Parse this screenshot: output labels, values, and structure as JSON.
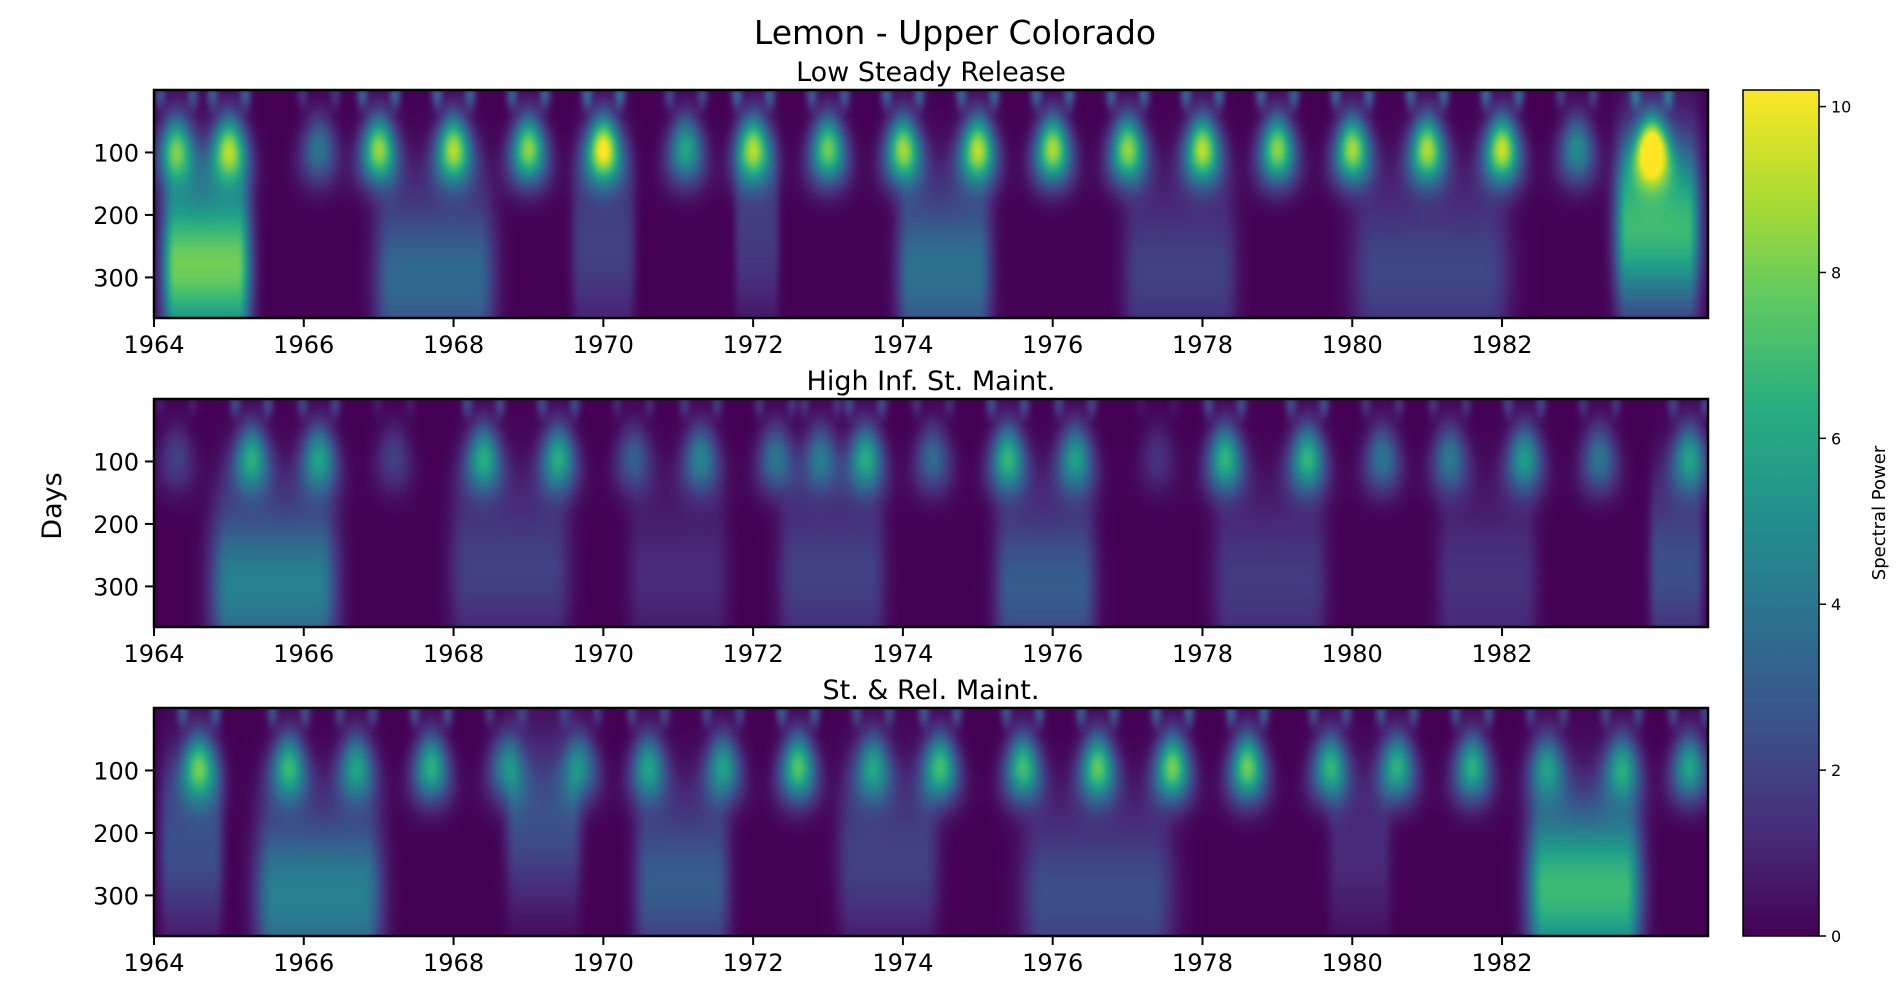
{
  "chart_data": {
    "type": "heatmap",
    "title": "Lemon - Upper Colorado",
    "ylabel": "Days",
    "colormap": "viridis",
    "colors": {
      "low": "#440154",
      "mid": "#21918c",
      "high": "#fde725"
    },
    "x_range": [
      1964,
      1984.75
    ],
    "y_range": [
      0,
      365
    ],
    "y_inverted": true,
    "xticks": [
      "1964",
      "1966",
      "1968",
      "1970",
      "1972",
      "1974",
      "1976",
      "1978",
      "1980",
      "1982"
    ],
    "yticks": [
      "100",
      "200",
      "300"
    ],
    "colorbar": {
      "label": "Spectral Power",
      "range": [
        0,
        10.2
      ],
      "ticks": [
        "0",
        "2",
        "4",
        "6",
        "8",
        "10"
      ]
    },
    "panels": [
      {
        "title": "Low Steady Release",
        "annual_peaks": [
          {
            "year": 1964.3,
            "power": 7.0
          },
          {
            "year": 1965.0,
            "power": 8.0
          },
          {
            "year": 1966.2,
            "power": 4.0
          },
          {
            "year": 1967.0,
            "power": 8.5
          },
          {
            "year": 1968.0,
            "power": 8.8
          },
          {
            "year": 1969.0,
            "power": 8.5
          },
          {
            "year": 1970.0,
            "power": 10.0
          },
          {
            "year": 1971.1,
            "power": 6.0
          },
          {
            "year": 1972.0,
            "power": 8.5
          },
          {
            "year": 1973.0,
            "power": 8.0
          },
          {
            "year": 1974.0,
            "power": 8.5
          },
          {
            "year": 1975.0,
            "power": 8.8
          },
          {
            "year": 1976.0,
            "power": 9.0
          },
          {
            "year": 1977.0,
            "power": 8.5
          },
          {
            "year": 1978.0,
            "power": 9.0
          },
          {
            "year": 1979.0,
            "power": 8.5
          },
          {
            "year": 1980.0,
            "power": 8.8
          },
          {
            "year": 1981.0,
            "power": 8.8
          },
          {
            "year": 1982.0,
            "power": 9.3
          },
          {
            "year": 1983.0,
            "power": 5.0
          },
          {
            "year": 1984.0,
            "power": 10.2
          }
        ],
        "multi_year_features": [
          {
            "start": 1964.0,
            "end": 1965.4,
            "center_day": 280,
            "power": 8.0
          },
          {
            "start": 1966.8,
            "end": 1968.7,
            "center_day": 300,
            "power": 3.5
          },
          {
            "start": 1969.5,
            "end": 1970.5,
            "center_day": 250,
            "power": 2.0
          },
          {
            "start": 1971.7,
            "end": 1972.4,
            "center_day": 230,
            "power": 1.8
          },
          {
            "start": 1973.8,
            "end": 1975.3,
            "center_day": 290,
            "power": 3.8
          },
          {
            "start": 1976.8,
            "end": 1978.6,
            "center_day": 290,
            "power": 2.0
          },
          {
            "start": 1979.8,
            "end": 1982.3,
            "center_day": 290,
            "power": 2.2
          },
          {
            "start": 1983.4,
            "end": 1984.75,
            "center_day": 220,
            "power": 7.0
          }
        ]
      },
      {
        "title": "High Inf. St. Maint.",
        "annual_peaks": [
          {
            "year": 1964.3,
            "power": 2.0
          },
          {
            "year": 1965.3,
            "power": 6.0
          },
          {
            "year": 1966.2,
            "power": 5.5
          },
          {
            "year": 1967.2,
            "power": 2.0
          },
          {
            "year": 1968.4,
            "power": 6.0
          },
          {
            "year": 1969.4,
            "power": 6.0
          },
          {
            "year": 1970.4,
            "power": 3.0
          },
          {
            "year": 1971.3,
            "power": 4.5
          },
          {
            "year": 1972.3,
            "power": 4.0
          },
          {
            "year": 1972.9,
            "power": 4.0
          },
          {
            "year": 1973.5,
            "power": 6.0
          },
          {
            "year": 1974.4,
            "power": 3.5
          },
          {
            "year": 1975.4,
            "power": 6.5
          },
          {
            "year": 1976.3,
            "power": 5.5
          },
          {
            "year": 1977.4,
            "power": 1.5
          },
          {
            "year": 1978.3,
            "power": 6.5
          },
          {
            "year": 1979.4,
            "power": 6.5
          },
          {
            "year": 1980.4,
            "power": 4.0
          },
          {
            "year": 1981.3,
            "power": 4.0
          },
          {
            "year": 1982.3,
            "power": 5.5
          },
          {
            "year": 1983.3,
            "power": 4.0
          },
          {
            "year": 1984.5,
            "power": 5.5
          }
        ],
        "multi_year_features": [
          {
            "start": 1964.6,
            "end": 1966.6,
            "center_day": 300,
            "power": 4.5
          },
          {
            "start": 1967.8,
            "end": 1969.7,
            "center_day": 270,
            "power": 2.0
          },
          {
            "start": 1970.2,
            "end": 1971.8,
            "center_day": 280,
            "power": 1.2
          },
          {
            "start": 1972.2,
            "end": 1973.9,
            "center_day": 280,
            "power": 2.0
          },
          {
            "start": 1975.1,
            "end": 1976.7,
            "center_day": 300,
            "power": 3.0
          },
          {
            "start": 1978.0,
            "end": 1979.8,
            "center_day": 290,
            "power": 1.8
          },
          {
            "start": 1981.0,
            "end": 1982.6,
            "center_day": 290,
            "power": 1.5
          },
          {
            "start": 1983.9,
            "end": 1984.75,
            "center_day": 270,
            "power": 2.5
          }
        ]
      },
      {
        "title": "St. & Rel. Maint.",
        "annual_peaks": [
          {
            "year": 1964.6,
            "power": 7.0
          },
          {
            "year": 1965.8,
            "power": 6.5
          },
          {
            "year": 1966.7,
            "power": 5.5
          },
          {
            "year": 1967.7,
            "power": 6.5
          },
          {
            "year": 1968.7,
            "power": 4.5
          },
          {
            "year": 1969.7,
            "power": 4.5
          },
          {
            "year": 1970.6,
            "power": 5.5
          },
          {
            "year": 1971.6,
            "power": 5.5
          },
          {
            "year": 1972.6,
            "power": 7.5
          },
          {
            "year": 1973.6,
            "power": 5.5
          },
          {
            "year": 1974.5,
            "power": 7.0
          },
          {
            "year": 1975.6,
            "power": 7.0
          },
          {
            "year": 1976.6,
            "power": 7.5
          },
          {
            "year": 1977.6,
            "power": 8.0
          },
          {
            "year": 1978.6,
            "power": 8.0
          },
          {
            "year": 1979.7,
            "power": 6.5
          },
          {
            "year": 1980.6,
            "power": 6.5
          },
          {
            "year": 1981.6,
            "power": 6.5
          },
          {
            "year": 1982.6,
            "power": 5.0
          },
          {
            "year": 1983.6,
            "power": 5.5
          },
          {
            "year": 1984.5,
            "power": 6.0
          }
        ],
        "multi_year_features": [
          {
            "start": 1964.0,
            "end": 1965.0,
            "center_day": 220,
            "power": 2.5
          },
          {
            "start": 1965.2,
            "end": 1967.2,
            "center_day": 300,
            "power": 4.5
          },
          {
            "start": 1968.6,
            "end": 1969.8,
            "center_day": 180,
            "power": 2.5
          },
          {
            "start": 1970.3,
            "end": 1971.8,
            "center_day": 280,
            "power": 3.0
          },
          {
            "start": 1973.0,
            "end": 1974.6,
            "center_day": 240,
            "power": 2.0
          },
          {
            "start": 1975.4,
            "end": 1977.8,
            "center_day": 300,
            "power": 2.5
          },
          {
            "start": 1979.6,
            "end": 1980.6,
            "center_day": 230,
            "power": 1.2
          },
          {
            "start": 1982.2,
            "end": 1984.0,
            "center_day": 290,
            "power": 7.0
          }
        ]
      }
    ]
  }
}
